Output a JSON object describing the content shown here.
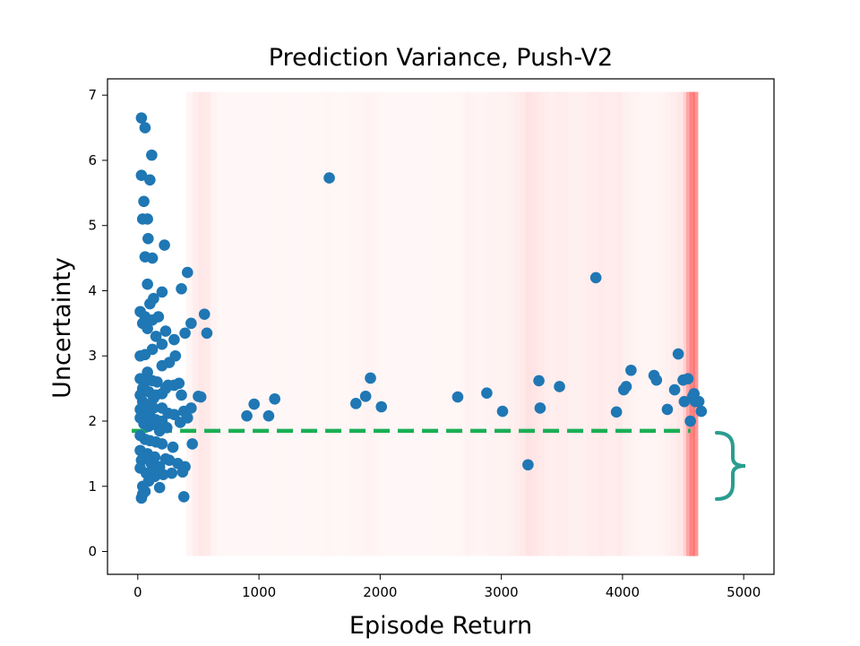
{
  "chart_data": {
    "type": "scatter",
    "title": "Prediction Variance, Push-V2",
    "xlabel": "Episode Return",
    "ylabel": "Uncertainty",
    "xlim": [
      -250,
      5250
    ],
    "ylim": [
      -0.35,
      7.25
    ],
    "xticks": [
      0,
      1000,
      2000,
      3000,
      4000,
      5000
    ],
    "yticks": [
      0,
      1,
      2,
      3,
      4,
      5,
      6,
      7
    ],
    "grid": false,
    "colors": {
      "points": "#1f77b4",
      "threshold": "#1aaf54",
      "shading": "#ff6b6b",
      "bracket": "#2a9d8f"
    },
    "threshold": {
      "y": 1.85,
      "x_start": -50,
      "x_end": 4560
    },
    "shading_bands": [
      [
        400,
        0.07
      ],
      [
        450,
        0.12
      ],
      [
        500,
        0.16
      ],
      [
        550,
        0.14
      ],
      [
        600,
        0.09
      ],
      [
        650,
        0.06
      ],
      [
        700,
        0.06
      ],
      [
        750,
        0.05
      ],
      [
        800,
        0.05
      ],
      [
        850,
        0.05
      ],
      [
        900,
        0.05
      ],
      [
        950,
        0.05
      ],
      [
        1000,
        0.05
      ],
      [
        1050,
        0.05
      ],
      [
        1100,
        0.05
      ],
      [
        1150,
        0.06
      ],
      [
        1200,
        0.05
      ],
      [
        1250,
        0.05
      ],
      [
        1300,
        0.05
      ],
      [
        1350,
        0.05
      ],
      [
        1400,
        0.05
      ],
      [
        1450,
        0.06
      ],
      [
        1500,
        0.06
      ],
      [
        1550,
        0.07
      ],
      [
        1600,
        0.06
      ],
      [
        1650,
        0.06
      ],
      [
        1700,
        0.06
      ],
      [
        1750,
        0.07
      ],
      [
        1800,
        0.07
      ],
      [
        1850,
        0.08
      ],
      [
        1900,
        0.08
      ],
      [
        1950,
        0.07
      ],
      [
        2000,
        0.06
      ],
      [
        2050,
        0.05
      ],
      [
        2100,
        0.05
      ],
      [
        2150,
        0.05
      ],
      [
        2200,
        0.05
      ],
      [
        2250,
        0.05
      ],
      [
        2300,
        0.05
      ],
      [
        2350,
        0.05
      ],
      [
        2400,
        0.05
      ],
      [
        2450,
        0.05
      ],
      [
        2500,
        0.06
      ],
      [
        2550,
        0.06
      ],
      [
        2600,
        0.06
      ],
      [
        2650,
        0.07
      ],
      [
        2700,
        0.09
      ],
      [
        2750,
        0.08
      ],
      [
        2800,
        0.07
      ],
      [
        2850,
        0.08
      ],
      [
        2900,
        0.09
      ],
      [
        2950,
        0.09
      ],
      [
        3000,
        0.09
      ],
      [
        3050,
        0.1
      ],
      [
        3100,
        0.12
      ],
      [
        3150,
        0.14
      ],
      [
        3200,
        0.19
      ],
      [
        3250,
        0.17
      ],
      [
        3300,
        0.15
      ],
      [
        3350,
        0.13
      ],
      [
        3400,
        0.11
      ],
      [
        3450,
        0.13
      ],
      [
        3500,
        0.12
      ],
      [
        3550,
        0.1
      ],
      [
        3600,
        0.1
      ],
      [
        3650,
        0.11
      ],
      [
        3700,
        0.12
      ],
      [
        3750,
        0.13
      ],
      [
        3800,
        0.14
      ],
      [
        3850,
        0.13
      ],
      [
        3900,
        0.12
      ],
      [
        3950,
        0.14
      ],
      [
        4000,
        0.1
      ],
      [
        4050,
        0.09
      ],
      [
        4100,
        0.08
      ],
      [
        4150,
        0.07
      ],
      [
        4200,
        0.07
      ],
      [
        4250,
        0.07
      ],
      [
        4300,
        0.08
      ],
      [
        4350,
        0.1
      ],
      [
        4400,
        0.12
      ],
      [
        4450,
        0.16
      ],
      [
        4500,
        0.3
      ],
      [
        4525,
        0.6
      ],
      [
        4550,
        0.85
      ],
      [
        4575,
        0.9
      ],
      [
        4600,
        0.7
      ]
    ],
    "points": [
      [
        30,
        6.65
      ],
      [
        60,
        6.5
      ],
      [
        115,
        6.08
      ],
      [
        30,
        5.77
      ],
      [
        100,
        5.7
      ],
      [
        50,
        5.37
      ],
      [
        40,
        5.1
      ],
      [
        80,
        5.1
      ],
      [
        85,
        4.8
      ],
      [
        220,
        4.7
      ],
      [
        60,
        4.52
      ],
      [
        120,
        4.5
      ],
      [
        80,
        4.1
      ],
      [
        410,
        4.28
      ],
      [
        360,
        4.03
      ],
      [
        200,
        3.98
      ],
      [
        130,
        3.88
      ],
      [
        100,
        3.8
      ],
      [
        20,
        3.68
      ],
      [
        60,
        3.6
      ],
      [
        120,
        3.55
      ],
      [
        170,
        3.6
      ],
      [
        40,
        3.5
      ],
      [
        80,
        3.42
      ],
      [
        440,
        3.5
      ],
      [
        550,
        3.64
      ],
      [
        570,
        3.35
      ],
      [
        230,
        3.38
      ],
      [
        390,
        3.35
      ],
      [
        150,
        3.3
      ],
      [
        300,
        3.25
      ],
      [
        200,
        3.18
      ],
      [
        120,
        3.1
      ],
      [
        60,
        3.02
      ],
      [
        20,
        3.0
      ],
      [
        310,
        3.0
      ],
      [
        260,
        2.9
      ],
      [
        200,
        2.85
      ],
      [
        80,
        2.75
      ],
      [
        20,
        2.65
      ],
      [
        60,
        2.6
      ],
      [
        120,
        2.62
      ],
      [
        160,
        2.6
      ],
      [
        300,
        2.55
      ],
      [
        340,
        2.58
      ],
      [
        230,
        2.5
      ],
      [
        40,
        2.5
      ],
      [
        20,
        2.4
      ],
      [
        90,
        2.45
      ],
      [
        150,
        2.4
      ],
      [
        200,
        2.42
      ],
      [
        360,
        2.4
      ],
      [
        500,
        2.38
      ],
      [
        520,
        2.37
      ],
      [
        40,
        2.3
      ],
      [
        80,
        2.25
      ],
      [
        130,
        2.2
      ],
      [
        200,
        2.2
      ],
      [
        250,
        2.12
      ],
      [
        300,
        2.1
      ],
      [
        380,
        2.15
      ],
      [
        440,
        2.2
      ],
      [
        20,
        2.18
      ],
      [
        60,
        2.12
      ],
      [
        110,
        2.05
      ],
      [
        150,
        2.02
      ],
      [
        200,
        2.0
      ],
      [
        350,
        1.98
      ],
      [
        410,
        2.05
      ],
      [
        20,
        2.05
      ],
      [
        50,
        1.96
      ],
      [
        90,
        1.92
      ],
      [
        130,
        1.95
      ],
      [
        180,
        1.85
      ],
      [
        240,
        1.9
      ],
      [
        20,
        1.78
      ],
      [
        60,
        1.72
      ],
      [
        100,
        1.7
      ],
      [
        150,
        1.68
      ],
      [
        200,
        1.65
      ],
      [
        290,
        1.6
      ],
      [
        450,
        1.65
      ],
      [
        20,
        1.55
      ],
      [
        80,
        1.5
      ],
      [
        140,
        1.45
      ],
      [
        230,
        1.42
      ],
      [
        30,
        1.4
      ],
      [
        110,
        1.35
      ],
      [
        180,
        1.3
      ],
      [
        260,
        1.4
      ],
      [
        330,
        1.35
      ],
      [
        390,
        1.3
      ],
      [
        20,
        1.28
      ],
      [
        70,
        1.2
      ],
      [
        140,
        1.15
      ],
      [
        210,
        1.18
      ],
      [
        280,
        1.2
      ],
      [
        370,
        1.22
      ],
      [
        90,
        1.08
      ],
      [
        40,
        1.0
      ],
      [
        180,
        0.98
      ],
      [
        60,
        0.92
      ],
      [
        30,
        0.82
      ],
      [
        380,
        0.84
      ],
      [
        40,
        0.88
      ],
      [
        150,
        1.25
      ],
      [
        250,
        2.55
      ],
      [
        130,
        2.35
      ],
      [
        1580,
        5.73
      ],
      [
        3780,
        4.2
      ],
      [
        900,
        2.08
      ],
      [
        960,
        2.26
      ],
      [
        1080,
        2.08
      ],
      [
        1130,
        2.34
      ],
      [
        1800,
        2.27
      ],
      [
        1880,
        2.38
      ],
      [
        1920,
        2.66
      ],
      [
        2010,
        2.22
      ],
      [
        2640,
        2.37
      ],
      [
        2880,
        2.43
      ],
      [
        3010,
        2.15
      ],
      [
        3220,
        1.33
      ],
      [
        3310,
        2.62
      ],
      [
        3320,
        2.2
      ],
      [
        3480,
        2.53
      ],
      [
        3950,
        2.14
      ],
      [
        4010,
        2.48
      ],
      [
        4030,
        2.53
      ],
      [
        4070,
        2.78
      ],
      [
        4260,
        2.7
      ],
      [
        4280,
        2.63
      ],
      [
        4370,
        2.18
      ],
      [
        4430,
        2.48
      ],
      [
        4460,
        3.03
      ],
      [
        4500,
        2.63
      ],
      [
        4510,
        2.3
      ],
      [
        4540,
        2.65
      ],
      [
        4560,
        2.0
      ],
      [
        4580,
        2.38
      ],
      [
        4600,
        2.3
      ],
      [
        4630,
        2.3
      ],
      [
        4650,
        2.15
      ],
      [
        4590,
        2.42
      ]
    ]
  }
}
